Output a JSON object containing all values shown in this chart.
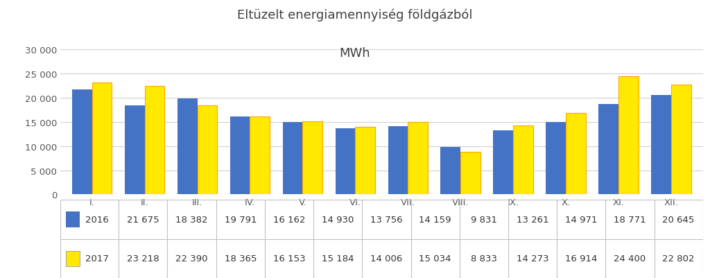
{
  "title_line1": "Eltüzelt energiamennyiség földgázból",
  "title_line2": "MWh",
  "categories": [
    "I.",
    "II.",
    "III.",
    "IV.",
    "V.",
    "VI.",
    "VII.",
    "VIII.",
    "IX.",
    "X.",
    "XI.",
    "XII."
  ],
  "values_2016": [
    21675,
    18382,
    19791,
    16162,
    14930,
    13756,
    14159,
    9831,
    13261,
    14971,
    18771,
    20645
  ],
  "values_2017": [
    23218,
    22390,
    18365,
    16153,
    15184,
    14006,
    15034,
    8833,
    14273,
    16914,
    24400,
    22802
  ],
  "color_2016": "#4472C4",
  "color_2017": "#FFE900",
  "bar_edge_color_2017": "#FFA500",
  "ylim": [
    0,
    30000
  ],
  "yticks": [
    0,
    5000,
    10000,
    15000,
    20000,
    25000,
    30000
  ],
  "ytick_labels": [
    "0",
    "5 000",
    "10 000",
    "15 000",
    "20 000",
    "25 000",
    "30 000"
  ],
  "legend_2016": "2016",
  "legend_2017": "2017",
  "legend_values_2016": [
    "21 675",
    "18 382",
    "19 791",
    "16 162",
    "14 930",
    "13 756",
    "14 159",
    "9 831",
    "13 261",
    "14 971",
    "18 771",
    "20 645"
  ],
  "legend_values_2017": [
    "23 218",
    "22 390",
    "18 365",
    "16 153",
    "15 184",
    "14 006",
    "15 034",
    "8 833",
    "14 273",
    "16 914",
    "24 400",
    "22 802"
  ],
  "background_color": "#ffffff",
  "grid_color": "#d0d0d0",
  "table_border_color": "#c0c0c0"
}
